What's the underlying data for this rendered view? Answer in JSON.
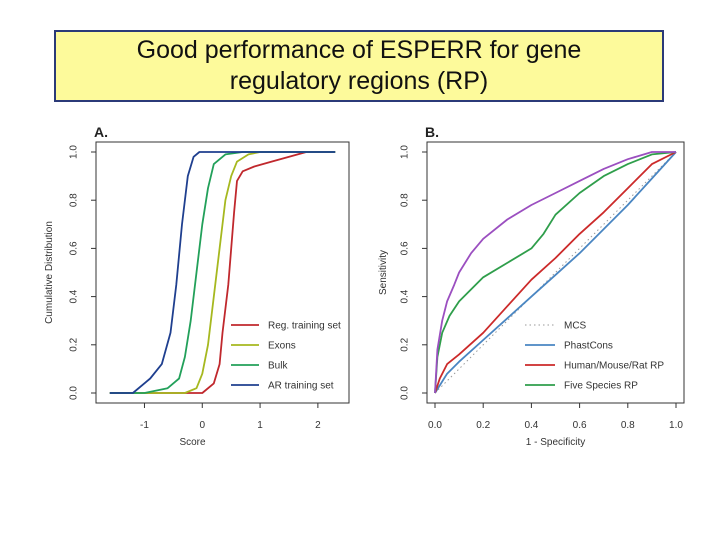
{
  "slide": {
    "title_line1": "Good performance of ESPERR for gene",
    "title_line2": "regulatory regions (RP)"
  },
  "chart_data": [
    {
      "panel": "A.",
      "type": "line",
      "xlabel": "Score",
      "ylabel": "Cumulative Distribution",
      "xlim": [
        -1.7,
        2.4
      ],
      "ylim": [
        0,
        1
      ],
      "x_ticks": [
        "-1",
        "0",
        "1",
        "2"
      ],
      "y_ticks": [
        "0.0",
        "0.2",
        "0.4",
        "0.6",
        "0.8",
        "1.0"
      ],
      "legend_position": "bottom-right",
      "series": [
        {
          "name": "Reg. training set",
          "color": "#c0282d",
          "x": [
            -1.6,
            0.0,
            0.2,
            0.3,
            0.35,
            0.45,
            0.5,
            0.55,
            0.6,
            0.7,
            0.9,
            1.2,
            1.8,
            2.3
          ],
          "y": [
            0.0,
            0.0,
            0.04,
            0.12,
            0.25,
            0.45,
            0.6,
            0.75,
            0.88,
            0.92,
            0.94,
            0.96,
            1.0,
            1.0
          ]
        },
        {
          "name": "Exons",
          "color": "#a6b81f",
          "x": [
            -1.6,
            -0.3,
            -0.1,
            0.0,
            0.1,
            0.2,
            0.3,
            0.4,
            0.5,
            0.6,
            0.8,
            1.0,
            2.3
          ],
          "y": [
            0.0,
            0.0,
            0.02,
            0.08,
            0.2,
            0.4,
            0.6,
            0.8,
            0.9,
            0.96,
            0.99,
            1.0,
            1.0
          ]
        },
        {
          "name": "Bulk",
          "color": "#22a05a",
          "x": [
            -1.6,
            -1.0,
            -0.6,
            -0.4,
            -0.3,
            -0.2,
            -0.1,
            0.0,
            0.1,
            0.2,
            0.4,
            0.7,
            2.3
          ],
          "y": [
            0.0,
            0.0,
            0.02,
            0.06,
            0.15,
            0.3,
            0.5,
            0.7,
            0.85,
            0.95,
            0.99,
            1.0,
            1.0
          ]
        },
        {
          "name": "AR training set",
          "color": "#1f3f8f",
          "x": [
            -1.6,
            -1.2,
            -0.9,
            -0.7,
            -0.55,
            -0.45,
            -0.35,
            -0.25,
            -0.15,
            -0.05,
            0.1,
            2.3
          ],
          "y": [
            0.0,
            0.0,
            0.06,
            0.12,
            0.25,
            0.45,
            0.7,
            0.9,
            0.98,
            1.0,
            1.0,
            1.0
          ]
        }
      ]
    },
    {
      "panel": "B.",
      "type": "line",
      "xlabel": "1 - Specificity",
      "ylabel": "Sensitivity",
      "xlim": [
        0,
        1
      ],
      "ylim": [
        0,
        1
      ],
      "x_ticks": [
        "0.0",
        "0.2",
        "0.4",
        "0.6",
        "0.8",
        "1.0"
      ],
      "y_ticks": [
        "0.0",
        "0.2",
        "0.4",
        "0.6",
        "0.8",
        "1.0"
      ],
      "legend_position": "bottom-right",
      "series": [
        {
          "name": "MCS",
          "color": "#9a9a9a",
          "dotted": true,
          "x": [
            0,
            1
          ],
          "y": [
            0,
            1
          ]
        },
        {
          "name": "PhastCons",
          "color": "#4a86c2",
          "x": [
            0,
            0.05,
            0.1,
            0.2,
            0.3,
            0.4,
            0.5,
            0.6,
            0.7,
            0.8,
            0.9,
            1.0
          ],
          "y": [
            0,
            0.08,
            0.13,
            0.22,
            0.31,
            0.4,
            0.49,
            0.58,
            0.68,
            0.78,
            0.89,
            1.0
          ]
        },
        {
          "name": "Human/Mouse/Rat RP",
          "color": "#cc2a2a",
          "x": [
            0,
            0.02,
            0.05,
            0.1,
            0.2,
            0.3,
            0.4,
            0.5,
            0.6,
            0.7,
            0.8,
            0.9,
            1.0
          ],
          "y": [
            0,
            0.06,
            0.12,
            0.16,
            0.25,
            0.36,
            0.47,
            0.56,
            0.66,
            0.75,
            0.85,
            0.95,
            1.0
          ]
        },
        {
          "name": "Five Species RP",
          "color": "#2f9e4b",
          "x": [
            0,
            0.01,
            0.03,
            0.06,
            0.1,
            0.2,
            0.3,
            0.4,
            0.45,
            0.5,
            0.6,
            0.7,
            0.8,
            0.9,
            1.0
          ],
          "y": [
            0,
            0.15,
            0.25,
            0.32,
            0.38,
            0.48,
            0.54,
            0.6,
            0.66,
            0.74,
            0.83,
            0.9,
            0.95,
            0.99,
            1.0
          ]
        },
        {
          "name": "",
          "color": "#9b4fc0",
          "x": [
            0,
            0.01,
            0.03,
            0.05,
            0.08,
            0.1,
            0.15,
            0.2,
            0.3,
            0.4,
            0.5,
            0.6,
            0.7,
            0.8,
            0.9,
            1.0
          ],
          "y": [
            0,
            0.18,
            0.3,
            0.38,
            0.45,
            0.5,
            0.58,
            0.64,
            0.72,
            0.78,
            0.83,
            0.88,
            0.93,
            0.97,
            1.0,
            1.0
          ]
        }
      ]
    }
  ]
}
